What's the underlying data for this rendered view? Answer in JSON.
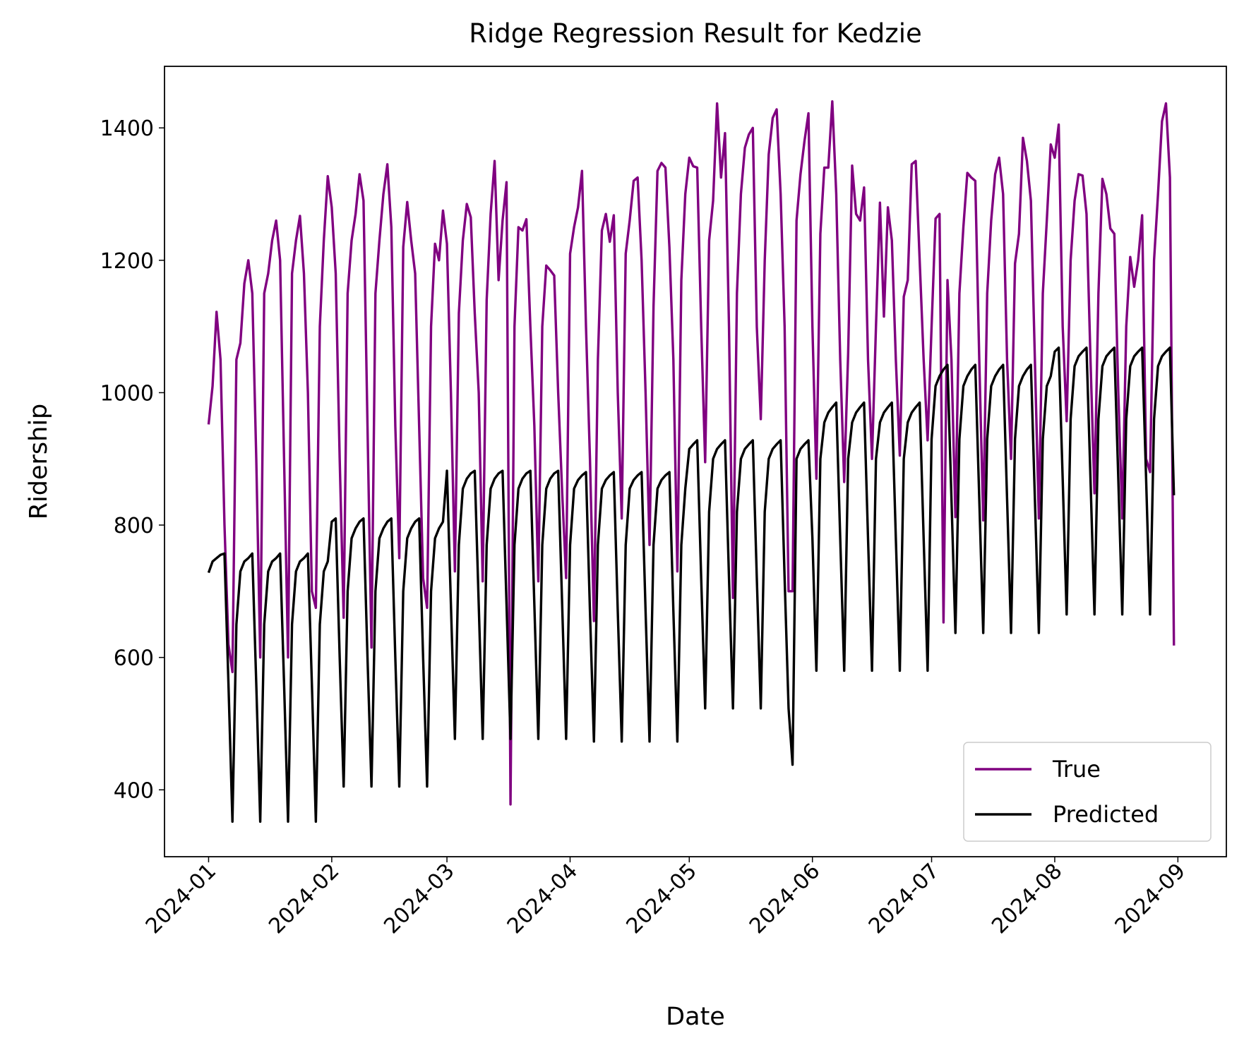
{
  "chart_data": {
    "type": "line",
    "title": "Ridge Regression Result for Kedzie",
    "xlabel": "Date",
    "ylabel": "Ridership",
    "legend": "lower right",
    "xlim": [
      -11.1,
      256.2
    ],
    "xticks": [
      {
        "value": 0,
        "label": "2024-01"
      },
      {
        "value": 31,
        "label": "2024-02"
      },
      {
        "value": 60,
        "label": "2024-03"
      },
      {
        "value": 91,
        "label": "2024-04"
      },
      {
        "value": 121,
        "label": "2024-05"
      },
      {
        "value": 152,
        "label": "2024-06"
      },
      {
        "value": 182,
        "label": "2024-07"
      },
      {
        "value": 213,
        "label": "2024-08"
      },
      {
        "value": 244,
        "label": "2024-09"
      }
    ],
    "ylim": [
      299,
      1493
    ],
    "yticks": [
      400,
      600,
      800,
      1000,
      1200,
      1400
    ],
    "series": [
      {
        "name": "True",
        "color": "#800080",
        "values": [
          952,
          1010,
          1122,
          1050,
          800,
          620,
          578,
          1050,
          1075,
          1165,
          1200,
          1150,
          900,
          600,
          1150,
          1180,
          1230,
          1260,
          1200,
          900,
          600,
          1180,
          1230,
          1267,
          1180,
          1000,
          700,
          675,
          1100,
          1230,
          1327,
          1280,
          1180,
          900,
          660,
          1150,
          1230,
          1270,
          1330,
          1290,
          950,
          615,
          1150,
          1230,
          1300,
          1345,
          1250,
          950,
          750,
          1220,
          1288,
          1230,
          1180,
          950,
          720,
          675,
          1100,
          1225,
          1200,
          1275,
          1225,
          1000,
          730,
          1120,
          1230,
          1285,
          1265,
          1120,
          1000,
          715,
          1140,
          1270,
          1350,
          1170,
          1260,
          1318,
          378,
          1100,
          1250,
          1245,
          1262,
          1100,
          950,
          715,
          1100,
          1192,
          1185,
          1177,
          1000,
          850,
          720,
          1210,
          1250,
          1280,
          1335,
          1100,
          900,
          655,
          1050,
          1245,
          1270,
          1228,
          1268,
          1000,
          810,
          1210,
          1260,
          1320,
          1325,
          1200,
          1000,
          770,
          1130,
          1335,
          1347,
          1340,
          1220,
          1050,
          730,
          1170,
          1300,
          1355,
          1342,
          1340,
          1100,
          895,
          1230,
          1290,
          1437,
          1325,
          1392,
          1100,
          690,
          1150,
          1300,
          1370,
          1390,
          1400,
          1100,
          960,
          1200,
          1360,
          1415,
          1428,
          1300,
          1100,
          700,
          700,
          1260,
          1330,
          1380,
          1422,
          1100,
          870,
          1240,
          1340,
          1340,
          1440,
          1300,
          1050,
          865,
          1060,
          1343,
          1270,
          1260,
          1310,
          1050,
          900,
          1100,
          1287,
          1115,
          1280,
          1230,
          1050,
          905,
          1145,
          1170,
          1345,
          1350,
          1200,
          1050,
          928,
          1100,
          1263,
          1270,
          653,
          1170,
          1050,
          812,
          1150,
          1250,
          1332,
          1325,
          1320,
          1050,
          807,
          1150,
          1260,
          1330,
          1355,
          1300,
          1050,
          900,
          1195,
          1240,
          1385,
          1350,
          1290,
          1050,
          810,
          1150,
          1260,
          1375,
          1355,
          1405,
          1100,
          957,
          1200,
          1290,
          1330,
          1328,
          1270,
          1050,
          848,
          1150,
          1323,
          1300,
          1248,
          1240,
          1000,
          810,
          1100,
          1205,
          1160,
          1200,
          1268,
          900,
          880,
          1200,
          1300,
          1410,
          1437,
          1325,
          618
        ]
      },
      {
        "name": "Predicted",
        "color": "#000000",
        "values": [
          728,
          745,
          750,
          755,
          757,
          560,
          352,
          650,
          730,
          745,
          750,
          757,
          560,
          352,
          650,
          730,
          745,
          750,
          757,
          560,
          352,
          650,
          730,
          745,
          750,
          757,
          560,
          352,
          650,
          730,
          745,
          805,
          810,
          600,
          405,
          700,
          780,
          795,
          805,
          810,
          600,
          405,
          700,
          780,
          795,
          805,
          810,
          600,
          405,
          700,
          780,
          795,
          805,
          810,
          600,
          405,
          700,
          780,
          795,
          805,
          882,
          680,
          477,
          770,
          855,
          870,
          878,
          882,
          680,
          477,
          770,
          855,
          870,
          878,
          882,
          680,
          477,
          770,
          855,
          870,
          878,
          882,
          680,
          477,
          770,
          855,
          870,
          878,
          882,
          680,
          477,
          770,
          855,
          868,
          875,
          880,
          670,
          473,
          770,
          855,
          868,
          875,
          880,
          670,
          473,
          770,
          855,
          868,
          875,
          880,
          670,
          473,
          770,
          855,
          868,
          875,
          880,
          670,
          473,
          770,
          855,
          915,
          922,
          928,
          720,
          523,
          820,
          900,
          915,
          922,
          928,
          720,
          523,
          820,
          900,
          915,
          922,
          928,
          720,
          523,
          820,
          900,
          915,
          922,
          928,
          720,
          523,
          438,
          900,
          915,
          922,
          928,
          780,
          580,
          900,
          955,
          970,
          978,
          985,
          780,
          580,
          900,
          955,
          970,
          978,
          985,
          780,
          580,
          900,
          955,
          970,
          978,
          985,
          780,
          580,
          900,
          955,
          970,
          978,
          985,
          780,
          580,
          930,
          1010,
          1025,
          1035,
          1042,
          840,
          637,
          930,
          1010,
          1025,
          1035,
          1042,
          840,
          637,
          930,
          1010,
          1025,
          1035,
          1042,
          840,
          637,
          930,
          1010,
          1025,
          1035,
          1042,
          840,
          637,
          930,
          1010,
          1025,
          1062,
          1068,
          870,
          665,
          960,
          1040,
          1055,
          1062,
          1068,
          870,
          665,
          960,
          1040,
          1055,
          1062,
          1068,
          870,
          665,
          960,
          1040,
          1055,
          1062,
          1068,
          870,
          665,
          960,
          1040,
          1055,
          1062,
          1068,
          845
        ]
      }
    ]
  }
}
